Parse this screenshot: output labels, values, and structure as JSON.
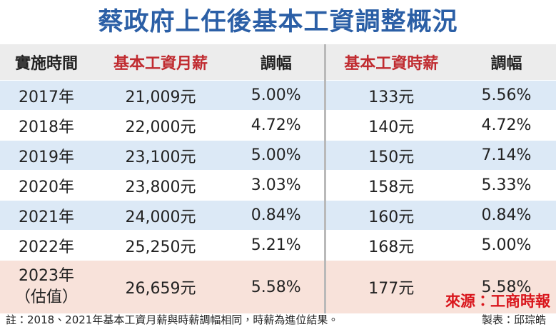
{
  "header": {
    "title": "蔡政府上任後基本工資調整概況"
  },
  "table": {
    "columns": [
      "實施時間",
      "基本工資月薪",
      "調幅",
      "基本工資時薪",
      "調幅"
    ],
    "rows": [
      [
        "2017年",
        "21,009元",
        "5.00%",
        "133元",
        "5.56%"
      ],
      [
        "2018年",
        "22,000元",
        "4.72%",
        "140元",
        "4.72%"
      ],
      [
        "2019年",
        "23,100元",
        "5.00%",
        "150元",
        "7.14%"
      ],
      [
        "2020年",
        "23,800元",
        "3.03%",
        "158元",
        "5.33%"
      ],
      [
        "2021年",
        "24,000元",
        "0.84%",
        "160元",
        "0.84%"
      ],
      [
        "2022年",
        "25,250元",
        "5.21%",
        "168元",
        "5.00%"
      ],
      [
        "2023年（估值）",
        "26,659元",
        "5.58%",
        "177元",
        "5.58%"
      ]
    ]
  },
  "source": "來源：工商時報",
  "note": "註：2018、2021年基本工資月薪與時薪調幅相同，時薪為進位結果。",
  "credit": "製表：邱琮皓"
}
